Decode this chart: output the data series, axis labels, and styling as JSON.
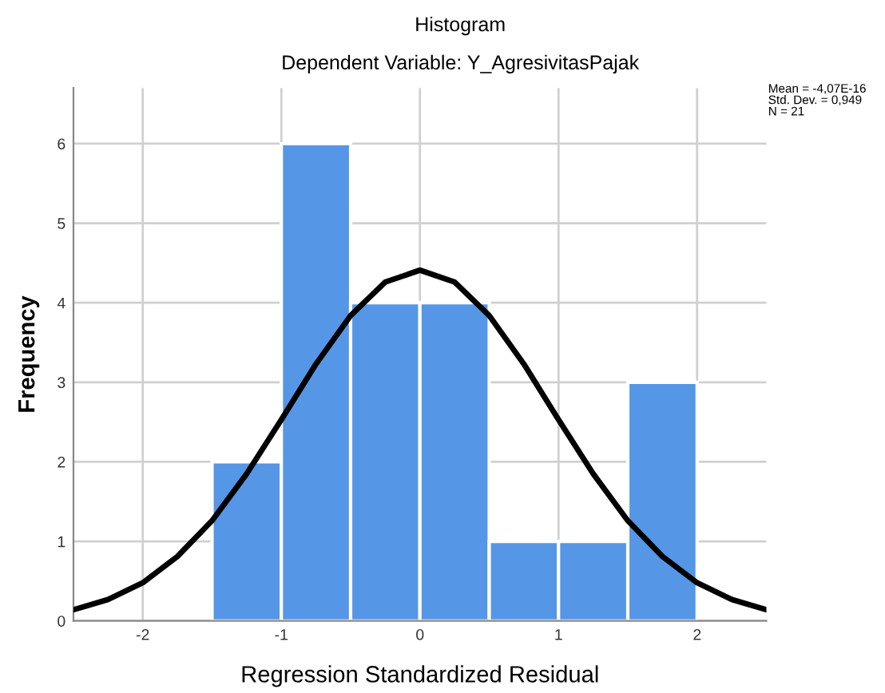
{
  "chart_data": {
    "type": "histogram",
    "title": "Histogram",
    "subtitle": "Dependent Variable: Y_AgresivitasPajak",
    "xlabel": "Regression Standardized Residual",
    "ylabel": "Frequency",
    "bins": [
      -1.5,
      -1.0,
      -0.5,
      0.0,
      0.5,
      1.0,
      1.5,
      2.0
    ],
    "values": [
      2,
      6,
      4,
      4,
      1,
      1,
      3
    ],
    "color": "#5596e6",
    "series": [
      {
        "type": "line",
        "color": "#000000",
        "x": [
          -2.5,
          -2.25,
          -2.0,
          -1.75,
          -1.5,
          -1.25,
          -1.0,
          -0.75,
          -0.5,
          -0.25,
          0.0,
          0.25,
          0.5,
          0.75,
          1.0,
          1.25,
          1.5,
          1.75,
          2.0,
          2.25,
          2.5
        ],
        "values": [
          0.14,
          0.27,
          0.48,
          0.81,
          1.26,
          1.85,
          2.53,
          3.23,
          3.84,
          4.26,
          4.41,
          4.26,
          3.84,
          3.23,
          2.53,
          1.85,
          1.26,
          0.81,
          0.48,
          0.27,
          0.14
        ]
      }
    ],
    "annotations": [
      "Mean = -4,07E-16",
      "Std. Dev. = 0,949",
      "N = 21"
    ],
    "xlim": [
      -2.5,
      2.5
    ],
    "xticks": [
      -2,
      -1,
      0,
      1,
      2
    ],
    "ylim": [
      0,
      6.7
    ],
    "yticks": [
      0,
      1,
      2,
      3,
      4,
      5,
      6
    ],
    "grid": true
  }
}
